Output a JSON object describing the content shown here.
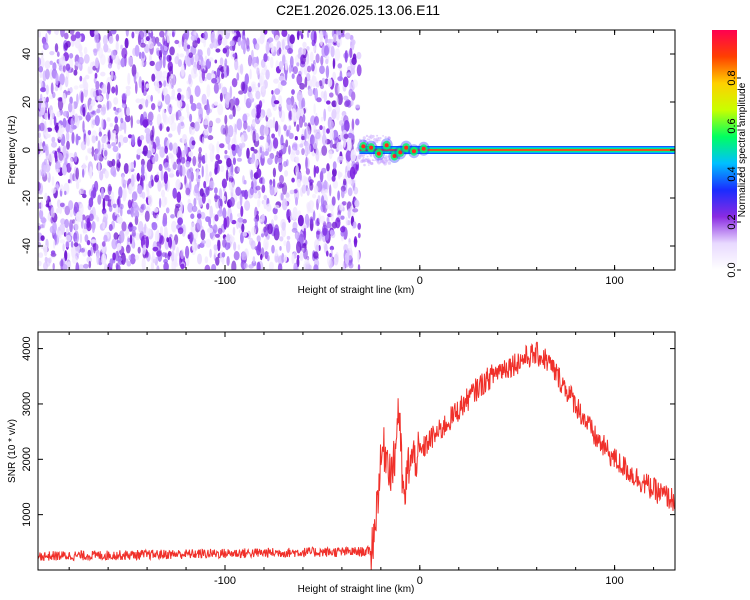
{
  "title": "C2E1.2026.025.13.06.E11",
  "colors": {
    "noise_purple": "#7a1fe0",
    "line_core": "#ff2a1a",
    "snr_line": "#f0302a",
    "axis": "#000000"
  },
  "chart_data": [
    {
      "type": "heatmap",
      "xlabel": "Height of straight line (km)",
      "ylabel": "Frequency (Hz)",
      "xlim": [
        -196,
        131
      ],
      "ylim": [
        -50,
        50
      ],
      "xticks": [
        -100,
        0,
        100
      ],
      "yticks": [
        -40,
        -20,
        0,
        20,
        40
      ],
      "noise_region_x": [
        -196,
        -31
      ],
      "signal_region_x": [
        -31,
        131
      ],
      "signal_frequency_hz": 0,
      "colorbar": {
        "label": "Normalized spectral amplitude",
        "ticks": [
          0.0,
          0.2,
          0.4,
          0.6,
          0.8
        ],
        "range": [
          0,
          1
        ],
        "stops": [
          "#ffffff",
          "#e8d9ff",
          "#8a2be2",
          "#1a2cff",
          "#00c0ff",
          "#00ff60",
          "#c8ff00",
          "#ffd000",
          "#ff4000",
          "#ff0050"
        ]
      }
    },
    {
      "type": "line",
      "xlabel": "Height of straight line (km)",
      "ylabel": "SNR (10 * v/v)",
      "xlim": [
        -196,
        131
      ],
      "ylim": [
        0,
        4300
      ],
      "xticks": [
        -100,
        0,
        100
      ],
      "yticks": [
        1000,
        2000,
        3000,
        4000
      ],
      "series": [
        {
          "points": [
            [
              -196,
              250
            ],
            [
              -150,
              270
            ],
            [
              -100,
              300
            ],
            [
              -60,
              320
            ],
            [
              -30,
              330
            ],
            [
              -25,
              340
            ],
            [
              -23,
              800
            ],
            [
              -21,
              1600
            ],
            [
              -19,
              2200
            ],
            [
              -17,
              2100
            ],
            [
              -15,
              1800
            ],
            [
              -13,
              1950
            ],
            [
              -11,
              3000
            ],
            [
              -10,
              2400
            ],
            [
              -9,
              1600
            ],
            [
              -8,
              1200
            ],
            [
              -6,
              1900
            ],
            [
              -4,
              2000
            ],
            [
              0,
              2100
            ],
            [
              5,
              2350
            ],
            [
              10,
              2500
            ],
            [
              20,
              2900
            ],
            [
              30,
              3300
            ],
            [
              40,
              3600
            ],
            [
              50,
              3750
            ],
            [
              55,
              3850
            ],
            [
              60,
              3900
            ],
            [
              65,
              3800
            ],
            [
              70,
              3550
            ],
            [
              80,
              3000
            ],
            [
              90,
              2400
            ],
            [
              100,
              2000
            ],
            [
              110,
              1700
            ],
            [
              120,
              1450
            ],
            [
              131,
              1250
            ]
          ]
        }
      ]
    }
  ]
}
